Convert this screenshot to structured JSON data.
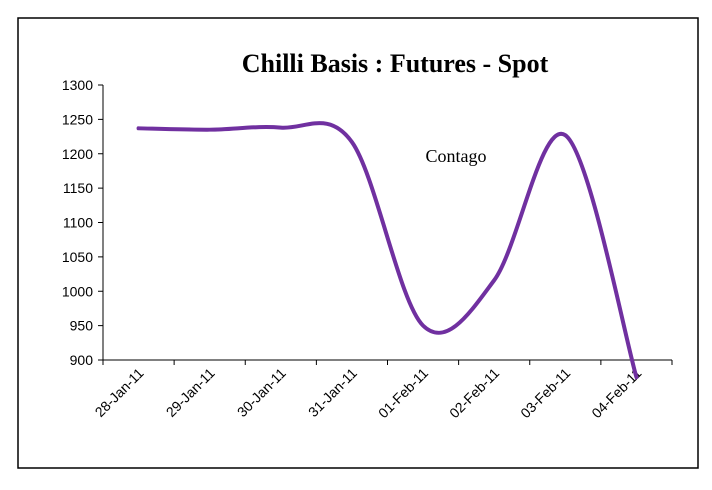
{
  "chart_data": {
    "type": "line",
    "title": "Chilli Basis : Futures - Spot",
    "categories": [
      "28-Jan-11",
      "29-Jan-11",
      "30-Jan-11",
      "31-Jan-11",
      "01-Feb-11",
      "02-Feb-11",
      "03-Feb-11",
      "04-Feb-11"
    ],
    "series": [
      {
        "name": "Basis",
        "color": "#7030a0",
        "values": [
          1237,
          1235,
          1238,
          1217,
          950,
          1016,
          1227,
          875
        ]
      }
    ],
    "annotation": "Contago",
    "ylim": [
      900,
      1300
    ],
    "yticks": [
      900,
      950,
      1000,
      1050,
      1100,
      1150,
      1200,
      1250,
      1300
    ],
    "smooth": true
  }
}
